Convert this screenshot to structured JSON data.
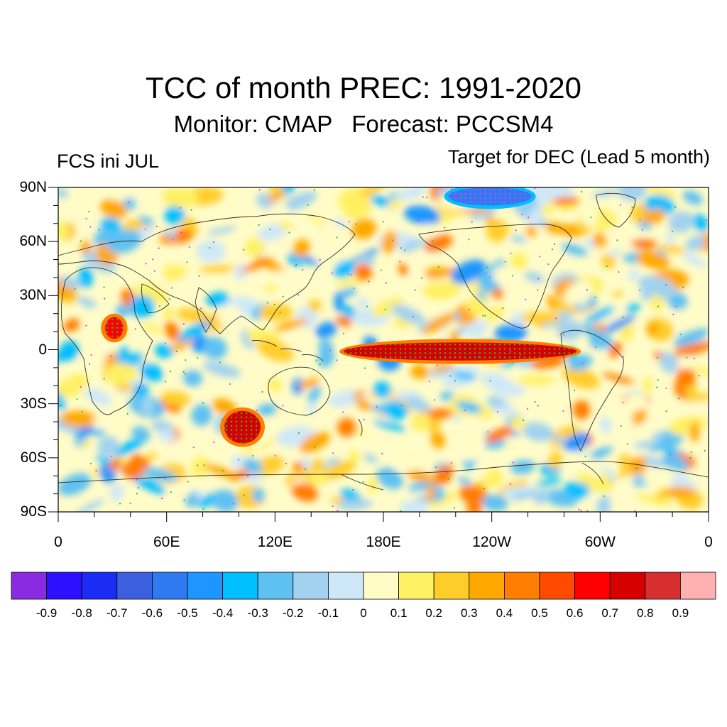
{
  "title": "TCC of month PREC: 1991-2020",
  "subtitle": "Monitor: CMAP   Forecast: PCCSM4",
  "left_label": "FCS ini JUL",
  "right_label": "Target for DEC (Lead 5 month)",
  "map": {
    "y_ticks": [
      "90N",
      "60N",
      "30N",
      "0",
      "30S",
      "60S",
      "90S"
    ],
    "x_ticks": [
      "0",
      "60E",
      "120E",
      "180E",
      "120W",
      "60W",
      "0"
    ],
    "lat_range": [
      -90,
      90
    ],
    "lon_range": [
      0,
      360
    ],
    "stipple_colors": {
      "positive": "#22c03a",
      "negative": "#e040f0"
    },
    "features": [
      {
        "name": "equatorial-pacific-positive",
        "lon": [
          158,
          287
        ],
        "lat": [
          -6,
          4
        ],
        "value": 0.75
      },
      {
        "name": "arctic-pacific-negative",
        "lon": [
          216,
          262
        ],
        "lat": [
          80,
          90
        ],
        "value": -0.6
      },
      {
        "name": "southern-indian-positive",
        "lon": [
          92,
          112
        ],
        "lat": [
          -52,
          -34
        ],
        "value": 0.75
      },
      {
        "name": "east-africa-positive",
        "lon": [
          26,
          36
        ],
        "lat": [
          6,
          18
        ],
        "value": 0.6
      }
    ]
  },
  "colorbar": {
    "colors": [
      "#8a2be2",
      "#2c10ff",
      "#1b2cf5",
      "#3d60e0",
      "#2f7af0",
      "#1e96ff",
      "#00bfff",
      "#5ec1f2",
      "#a2d2ef",
      "#cfe8f8",
      "#fffcc8",
      "#fff064",
      "#ffcd2a",
      "#ffa800",
      "#ff7d00",
      "#ff4a00",
      "#ff0000",
      "#d70000",
      "#d72f2f",
      "#ffb0b0"
    ],
    "labels": [
      "-0.9",
      "-0.8",
      "-0.7",
      "-0.6",
      "-0.5",
      "-0.4",
      "-0.3",
      "-0.2",
      "-0.1",
      "0",
      "0.1",
      "0.2",
      "0.3",
      "0.4",
      "0.5",
      "0.6",
      "0.7",
      "0.8",
      "0.9"
    ]
  }
}
